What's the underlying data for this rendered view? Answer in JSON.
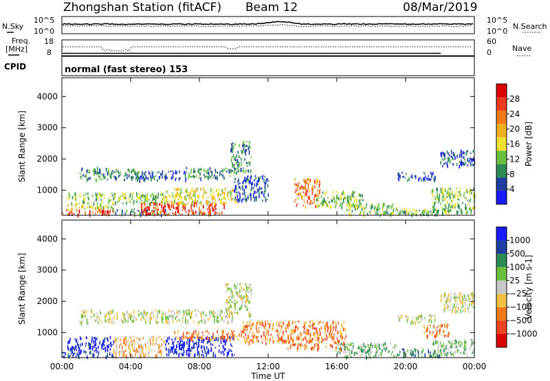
{
  "header": {
    "title": "Zhongshan Station (fitACF)",
    "beam": "Beam 12",
    "date": "08/Mar/2019"
  },
  "top_panel": {
    "left_label": "N.Sky",
    "right_label": "N.Search",
    "tick_high": "10^5",
    "tick_low": "10^0"
  },
  "freq_panel": {
    "left_label_1": "Freq.",
    "left_label_2": "[MHz]",
    "left_tick_high": "18",
    "left_tick_low": "8",
    "right_label": "Nave",
    "right_tick_high": "60",
    "right_tick_low": "0"
  },
  "cpid": {
    "label": "CPID",
    "text": "normal (fast stereo) 153"
  },
  "colors": {
    "power": [
      "#1a1aff",
      "#1f3fa0",
      "#2e8b57",
      "#6abf3e",
      "#f0e030",
      "#f0b020",
      "#f07a18",
      "#ee3a1e",
      "#dd0000"
    ],
    "velocity": [
      "#dd0000",
      "#ee4422",
      "#f07a18",
      "#f0c040",
      "#c8c8c8",
      "#6abf3e",
      "#2e8b57",
      "#1f3fa0",
      "#1a1aff"
    ]
  },
  "chart_data": [
    {
      "type": "heatmap",
      "panel": "power",
      "ylabel": "Slant Range [km]",
      "x_ticks": [
        "00:00",
        "04:00",
        "08:00",
        "12:00",
        "16:00",
        "20:00",
        "00:00"
      ],
      "y_ticks": [
        1000,
        2000,
        3000,
        4000
      ],
      "ylim": [
        200,
        4600
      ],
      "xlim_hours": [
        0,
        24
      ],
      "colorbar": {
        "label": "Power [dB]",
        "ticks": [
          4,
          8,
          12,
          16,
          20,
          24,
          28
        ],
        "range": [
          0,
          32
        ]
      },
      "regions": [
        {
          "t0": 0.0,
          "t1": 3.0,
          "r0": 250,
          "r1": 420,
          "v": 27
        },
        {
          "t0": 0.2,
          "t1": 3.0,
          "r0": 420,
          "r1": 600,
          "v": 17
        },
        {
          "t0": 0.3,
          "t1": 6.0,
          "r0": 600,
          "r1": 950,
          "v": 11
        },
        {
          "t0": 3.0,
          "t1": 6.0,
          "r0": 250,
          "r1": 420,
          "v": 9
        },
        {
          "t0": 4.5,
          "t1": 9.5,
          "r0": 250,
          "r1": 650,
          "v": 25
        },
        {
          "t0": 6.0,
          "t1": 10.2,
          "r0": 600,
          "r1": 1100,
          "v": 16
        },
        {
          "t0": 1.0,
          "t1": 4.5,
          "r0": 1350,
          "r1": 1750,
          "v": 9
        },
        {
          "t0": 4.5,
          "t1": 7.2,
          "r0": 1350,
          "r1": 1650,
          "v": 6
        },
        {
          "t0": 7.2,
          "t1": 9.8,
          "r0": 1400,
          "r1": 1750,
          "v": 8
        },
        {
          "t0": 9.8,
          "t1": 11.0,
          "r0": 1600,
          "r1": 2600,
          "v": 10
        },
        {
          "t0": 10.0,
          "t1": 12.0,
          "r0": 700,
          "r1": 1500,
          "v": 7
        },
        {
          "t0": 13.5,
          "t1": 15.0,
          "r0": 500,
          "r1": 1400,
          "v": 22
        },
        {
          "t0": 14.8,
          "t1": 17.5,
          "r0": 500,
          "r1": 1000,
          "v": 12
        },
        {
          "t0": 16.5,
          "t1": 19.5,
          "r0": 250,
          "r1": 600,
          "v": 14
        },
        {
          "t0": 19.5,
          "t1": 22.5,
          "r0": 250,
          "r1": 450,
          "v": 11
        },
        {
          "t0": 19.5,
          "t1": 21.7,
          "r0": 1350,
          "r1": 1600,
          "v": 6
        },
        {
          "t0": 21.5,
          "t1": 24.0,
          "r0": 300,
          "r1": 1100,
          "v": 12
        },
        {
          "t0": 22.0,
          "t1": 24.0,
          "r0": 1800,
          "r1": 2300,
          "v": 6
        }
      ]
    },
    {
      "type": "heatmap",
      "panel": "velocity",
      "ylabel": "Slant Range [km]",
      "xlabel": "Time UT",
      "x_ticks": [
        "00:00",
        "04:00",
        "08:00",
        "12:00",
        "16:00",
        "20:00",
        "00:00"
      ],
      "y_ticks": [
        1000,
        2000,
        3000,
        4000
      ],
      "ylim": [
        200,
        4600
      ],
      "xlim_hours": [
        0,
        24
      ],
      "colorbar": {
        "label": "Velocity [m s-1]",
        "ticks": [
          1000,
          500,
          100,
          25,
          -25,
          -100,
          -500,
          -1000
        ]
      },
      "regions": [
        {
          "t0": 0.0,
          "t1": 3.0,
          "r0": 250,
          "r1": 450,
          "v": 7
        },
        {
          "t0": 0.3,
          "t1": 3.0,
          "r0": 450,
          "r1": 900,
          "v": 8
        },
        {
          "t0": 3.0,
          "t1": 6.0,
          "r0": 250,
          "r1": 900,
          "v": 3
        },
        {
          "t0": 6.0,
          "t1": 10.0,
          "r0": 300,
          "r1": 900,
          "v": 8
        },
        {
          "t0": 6.5,
          "t1": 10.5,
          "r0": 800,
          "r1": 1100,
          "v": 2
        },
        {
          "t0": 1.0,
          "t1": 10.0,
          "r0": 1350,
          "r1": 1750,
          "v": 4
        },
        {
          "t0": 9.5,
          "t1": 11.0,
          "r0": 1600,
          "r1": 2600,
          "v": 4
        },
        {
          "t0": 10.5,
          "t1": 13.0,
          "r0": 700,
          "r1": 1400,
          "v": 2
        },
        {
          "t0": 13.0,
          "t1": 16.5,
          "r0": 500,
          "r1": 1400,
          "v": 2
        },
        {
          "t0": 16.0,
          "t1": 19.5,
          "r0": 250,
          "r1": 700,
          "v": 5
        },
        {
          "t0": 19.5,
          "t1": 22.0,
          "r0": 250,
          "r1": 500,
          "v": 6
        },
        {
          "t0": 19.5,
          "t1": 21.7,
          "r0": 1350,
          "r1": 1600,
          "v": 4
        },
        {
          "t0": 21.0,
          "t1": 22.5,
          "r0": 900,
          "r1": 1300,
          "v": 2
        },
        {
          "t0": 21.5,
          "t1": 24.0,
          "r0": 300,
          "r1": 800,
          "v": 5
        },
        {
          "t0": 22.0,
          "t1": 24.0,
          "r0": 1700,
          "r1": 2300,
          "v": 4
        }
      ]
    }
  ],
  "axis": {
    "xlabel": "Time UT"
  }
}
